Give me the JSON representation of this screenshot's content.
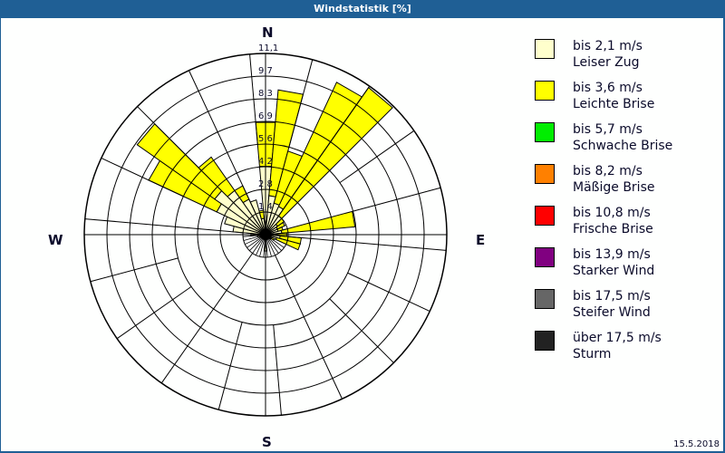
{
  "window": {
    "title": "Windstatistik [%]"
  },
  "compass": {
    "n": "N",
    "e": "E",
    "s": "S",
    "w": "W"
  },
  "footer": {
    "date": "15.5.2018"
  },
  "legend": [
    {
      "speed": "bis 2,1 m/s",
      "name": "Leiser Zug",
      "color": "#ffffcc"
    },
    {
      "speed": "bis 3,6 m/s",
      "name": "Leichte Brise",
      "color": "#ffff00"
    },
    {
      "speed": "bis 5,7 m/s",
      "name": "Schwache Brise",
      "color": "#00ee00"
    },
    {
      "speed": "bis 8,2 m/s",
      "name": "Mäßige Brise",
      "color": "#ff8000"
    },
    {
      "speed": "bis 10,8 m/s",
      "name": "Frische Brise",
      "color": "#ff0000"
    },
    {
      "speed": "bis 13,9 m/s",
      "name": "Starker Wind",
      "color": "#800080"
    },
    {
      "speed": "bis 17,5 m/s",
      "name": "Steifer Wind",
      "color": "#666666"
    },
    {
      "speed": "über 17,5 m/s",
      "name": "Sturm",
      "color": "#222222"
    }
  ],
  "chart_data": {
    "type": "wind-rose (polar stacked bar)",
    "title": "Windstatistik [%]",
    "ring_labels": [
      "1,4",
      "2,8",
      "4,2",
      "5,6",
      "6,9",
      "8,3",
      "9,7",
      "11,1"
    ],
    "ring_values": [
      1.4,
      2.8,
      4.2,
      5.6,
      6.9,
      8.3,
      9.7,
      11.1
    ],
    "rmax": 11.1,
    "sector_width_deg": 10,
    "directions_deg": [
      0,
      10,
      20,
      30,
      40,
      50,
      60,
      70,
      80,
      90,
      100,
      110,
      120,
      130,
      140,
      150,
      160,
      170,
      180,
      190,
      200,
      210,
      220,
      230,
      240,
      250,
      260,
      270,
      280,
      290,
      300,
      310,
      320,
      330,
      340,
      350
    ],
    "series": [
      {
        "name": "bis 2,1 m/s Leiser Zug",
        "color": "#ffffcc",
        "values": [
          4.2,
          2.4,
          2.0,
          1.9,
          1.4,
          0.9,
          0.8,
          0.8,
          1.0,
          0.6,
          0.9,
          0.7,
          0.4,
          0.3,
          0.3,
          0.3,
          0.3,
          0.3,
          1.0,
          0.3,
          0.3,
          0.3,
          0.3,
          0.3,
          0.3,
          0.4,
          0.5,
          0.9,
          2.0,
          2.6,
          3.3,
          3.8,
          3.3,
          2.4,
          2.2,
          1.0
        ]
      },
      {
        "name": "bis 3,6 m/s Leichte Brise",
        "color": "#ffff00",
        "values": [
          2.7,
          6.5,
          3.3,
          8.4,
          9.6,
          0.5,
          0.5,
          0.3,
          4.5,
          0.7,
          1.3,
          1.5,
          0.2,
          0.1,
          0,
          0,
          0,
          0,
          0,
          0,
          0,
          0,
          0,
          0,
          0,
          0,
          0,
          0,
          0,
          0,
          4.6,
          5.8,
          2.5,
          0.9,
          0,
          0.5
        ]
      },
      {
        "name": "bis 5,7 m/s Schwache Brise",
        "color": "#00ee00",
        "values": []
      },
      {
        "name": "bis 8,2 m/s Mäßige Brise",
        "color": "#ff8000",
        "values": []
      },
      {
        "name": "bis 10,8 m/s Frische Brise",
        "color": "#ff0000",
        "values": []
      },
      {
        "name": "bis 13,9 m/s Starker Wind",
        "color": "#800080",
        "values": []
      },
      {
        "name": "bis 17,5 m/s Steifer Wind",
        "color": "#666666",
        "values": []
      },
      {
        "name": "über 17,5 m/s Sturm",
        "color": "#222222",
        "values": []
      }
    ],
    "legend_position": "right"
  }
}
